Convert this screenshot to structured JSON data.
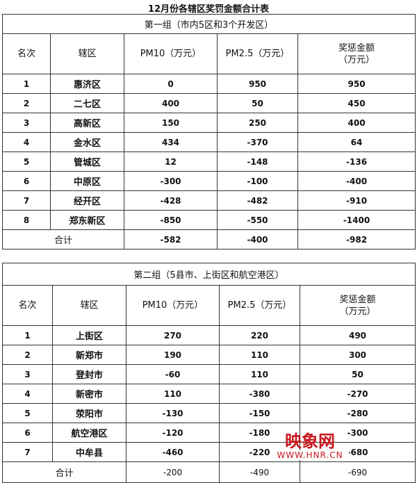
{
  "title": "12月份各辖区奖罚金额合计表",
  "headers": {
    "rank": "名次",
    "district": "辖区",
    "pm10": "PM10（万元）",
    "pm25": "PM2.5（万元）",
    "total1": "奖惩金额",
    "total2": "（万元）"
  },
  "group1": {
    "title": "第一组（市内5区和3个开发区）",
    "rows": [
      [
        "1",
        "惠济区",
        "0",
        "950",
        "950"
      ],
      [
        "2",
        "二七区",
        "400",
        "50",
        "450"
      ],
      [
        "3",
        "高新区",
        "150",
        "250",
        "400"
      ],
      [
        "4",
        "金水区",
        "434",
        "-370",
        "64"
      ],
      [
        "5",
        "管城区",
        "12",
        "-148",
        "-136"
      ],
      [
        "6",
        "中原区",
        "-300",
        "-100",
        "-400"
      ],
      [
        "7",
        "经开区",
        "-428",
        "-482",
        "-910"
      ],
      [
        "8",
        "郑东新区",
        "-850",
        "-550",
        "-1400"
      ]
    ],
    "sum": {
      "label": "合计",
      "pm10": "-582",
      "pm25": "-400",
      "total": "-982"
    }
  },
  "group2": {
    "title": "第二组（5县市、上街区和航空港区）",
    "rows": [
      [
        "1",
        "上街区",
        "270",
        "220",
        "490"
      ],
      [
        "2",
        "新郑市",
        "190",
        "110",
        "300"
      ],
      [
        "3",
        "登封市",
        "-60",
        "110",
        "50"
      ],
      [
        "4",
        "新密市",
        "110",
        "-380",
        "-270"
      ],
      [
        "5",
        "荥阳市",
        "-130",
        "-150",
        "-280"
      ],
      [
        "6",
        "航空港区",
        "-120",
        "-180",
        "-300"
      ],
      [
        "7",
        "中牟县",
        "-460",
        "-220",
        "-680"
      ]
    ],
    "sum": {
      "label": "合计",
      "pm10": "-200",
      "pm25": "-490",
      "total": "-690"
    }
  },
  "watermark": {
    "name": "映象网",
    "url": "WWW.HNR.CN",
    "color": "#c8161d"
  }
}
